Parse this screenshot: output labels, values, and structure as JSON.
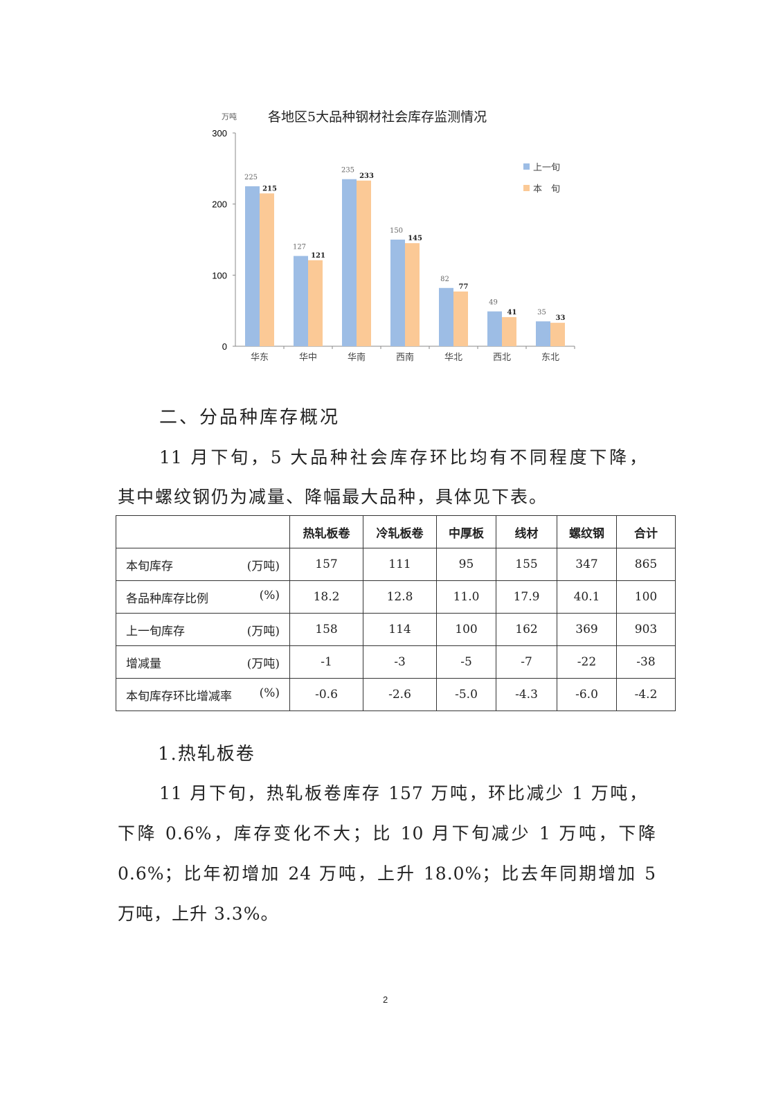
{
  "chart_data": {
    "type": "bar",
    "title": "各地区5大品种钢材社会库存监测情况",
    "ylabel": "万吨",
    "ylim": [
      0,
      300
    ],
    "yticks": [
      0,
      100,
      200,
      300
    ],
    "categories": [
      "华东",
      "华中",
      "华南",
      "西南",
      "华北",
      "西北",
      "东北"
    ],
    "series": [
      {
        "name": "上一旬",
        "color": "#9dbde5",
        "values": [
          225,
          127,
          235,
          150,
          82,
          49,
          35
        ]
      },
      {
        "name": "本　旬",
        "color": "#fbc996",
        "values": [
          215,
          121,
          233,
          145,
          77,
          41,
          33
        ]
      }
    ],
    "legend": "right",
    "grid": false
  },
  "section_heading": "二、分品种库存概况",
  "intro_lines": [
    "11 月下旬，5 大品种社会库存环比均有不同程度下降，",
    "其中螺纹钢仍为减量、降幅最大品种，具体见下表。"
  ],
  "table": {
    "headers": [
      "",
      "热轧板卷",
      "冷轧板卷",
      "中厚板",
      "线材",
      "螺纹钢",
      "合计"
    ],
    "rows": [
      {
        "label": "本旬库存",
        "unit": "(万吨)",
        "values": [
          "157",
          "111",
          "95",
          "155",
          "347",
          "865"
        ]
      },
      {
        "label": "各品种库存比例",
        "unit": "(%)",
        "values": [
          "18.2",
          "12.8",
          "11.0",
          "17.9",
          "40.1",
          "100"
        ]
      },
      {
        "label": "上一旬库存",
        "unit": "(万吨)",
        "values": [
          "158",
          "114",
          "100",
          "162",
          "369",
          "903"
        ]
      },
      {
        "label": "增减量",
        "unit": "(万吨)",
        "values": [
          "-1",
          "-3",
          "-5",
          "-7",
          "-22",
          "-38"
        ]
      },
      {
        "label": "本旬库存环比增减率",
        "unit": "(%)",
        "values": [
          "-0.6",
          "-2.6",
          "-5.0",
          "-4.3",
          "-6.0",
          "-4.2"
        ]
      }
    ]
  },
  "subheading": "1.热轧板卷",
  "body_lines": [
    "11 月下旬，热轧板卷库存 157 万吨，环比减少 1 万吨，",
    "下降 0.6%，库存变化不大；比 10 月下旬减少 1 万吨，下降",
    "0.6%；比年初增加 24 万吨，上升 18.0%；比去年同期增加 5",
    "万吨，上升 3.3%。"
  ],
  "page_number": "2"
}
